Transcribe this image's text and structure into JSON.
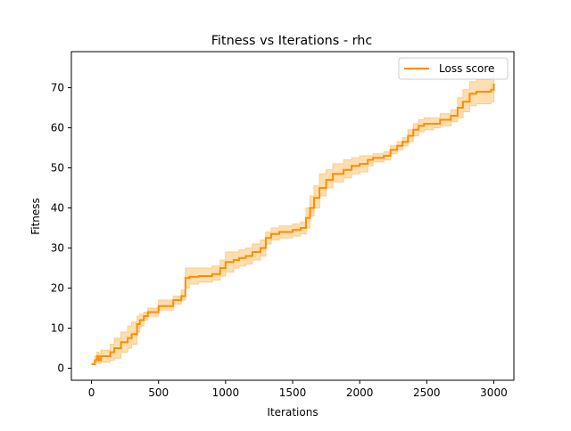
{
  "chart_data": {
    "type": "line",
    "title": "Fitness vs Iterations - rhc",
    "xlabel": "Iterations",
    "ylabel": "Fitness",
    "xlim": [
      -150,
      3150
    ],
    "ylim": [
      -3,
      79
    ],
    "xticks": [
      0,
      500,
      1000,
      1500,
      2000,
      2500,
      3000
    ],
    "yticks": [
      0,
      10,
      20,
      30,
      40,
      50,
      60,
      70
    ],
    "grid": false,
    "legend": {
      "placement": "top-right",
      "entries": [
        "Loss score"
      ]
    },
    "colors": {
      "line": "#ff8c00",
      "band": "#ffdfb0",
      "band_edge": "#ffc98a",
      "axes": "#000000"
    },
    "series": [
      {
        "name": "Loss score",
        "kind": "step",
        "x": [
          0,
          25,
          40,
          55,
          70,
          140,
          170,
          220,
          270,
          300,
          340,
          360,
          390,
          420,
          500,
          610,
          670,
          700,
          730,
          800,
          900,
          960,
          1000,
          1060,
          1100,
          1150,
          1200,
          1260,
          1300,
          1340,
          1400,
          1500,
          1560,
          1600,
          1630,
          1660,
          1700,
          1750,
          1800,
          1880,
          1940,
          2000,
          2060,
          2100,
          2180,
          2230,
          2280,
          2320,
          2360,
          2400,
          2440,
          2480,
          2550,
          2600,
          2680,
          2730,
          2770,
          2820,
          2870,
          2980,
          3000
        ],
        "y": [
          1,
          2,
          3,
          2,
          3,
          4,
          5,
          6.5,
          7.5,
          8.5,
          11,
          12,
          13,
          14,
          15.5,
          17,
          18,
          22.5,
          22.8,
          23,
          23.5,
          25,
          26.5,
          27,
          27.5,
          28,
          29,
          30,
          32.5,
          33.5,
          34,
          34.5,
          35,
          37.5,
          40,
          42.5,
          45,
          47,
          48.5,
          49.5,
          50.5,
          51,
          52,
          52.5,
          53,
          54.5,
          55.5,
          56.5,
          58,
          59.5,
          60.5,
          61,
          61,
          62,
          63,
          65,
          66.5,
          68.5,
          69,
          69.5,
          71
        ],
        "lower": [
          1,
          1.2,
          1.5,
          1.2,
          1.5,
          2,
          2.5,
          4,
          5,
          6,
          9,
          10.5,
          12,
          13,
          14.5,
          16,
          17,
          20,
          21,
          21.5,
          22,
          23,
          24,
          25,
          25.5,
          26,
          27,
          28,
          31,
          32,
          32.5,
          33,
          33.5,
          35,
          38,
          40,
          43,
          45,
          46.5,
          47.5,
          48.5,
          49,
          50.5,
          51.5,
          52,
          53.5,
          54.5,
          55.5,
          56.5,
          58,
          59,
          59.5,
          60,
          60.5,
          61.5,
          62.5,
          64,
          65.5,
          66,
          66.5,
          67
        ],
        "upper": [
          1,
          3,
          4,
          3.5,
          4.5,
          6,
          7.5,
          9,
          10.5,
          11.5,
          13,
          13.5,
          14,
          15,
          17,
          18,
          19.5,
          25,
          25,
          25,
          25.5,
          27,
          29,
          29,
          29.5,
          30,
          31,
          32,
          34,
          35,
          35.5,
          36,
          36.5,
          40,
          43,
          45.5,
          48.5,
          49.5,
          51,
          52,
          52.5,
          53,
          53,
          53.5,
          54,
          55.5,
          56.5,
          57.5,
          59.5,
          61,
          62,
          62.5,
          62.5,
          63.5,
          64.5,
          67.5,
          69.5,
          71.5,
          72,
          72.5,
          75
        ]
      }
    ]
  }
}
